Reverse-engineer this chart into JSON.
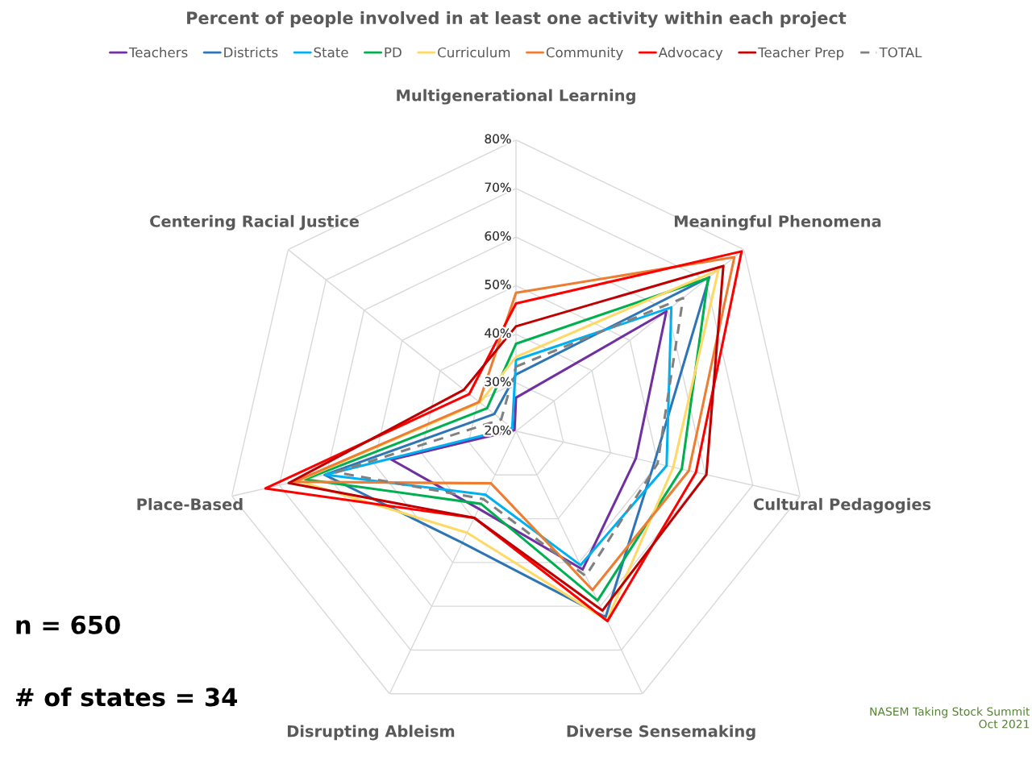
{
  "chart_data": {
    "type": "radar",
    "title": "Percent of people involved in at least one activity within each project",
    "categories": [
      "Multigenerational Learning",
      "Meaningful Phenomena",
      "Cultural Pedagogies",
      "Diverse Sensemaking",
      "Disrupting Ableism",
      "Place-Based",
      "Centering Racial Justice"
    ],
    "series": [
      {
        "name": "Teachers",
        "color": "#7030a0",
        "values": [
          26.9,
          59.6,
          45.3,
          51.6,
          37.7,
          46.3,
          20.4
        ]
      },
      {
        "name": "Districts",
        "color": "#2e75b6",
        "values": [
          31.7,
          70.9,
          49.2,
          62.5,
          45.5,
          60.4,
          25.7
        ]
      },
      {
        "name": "State",
        "color": "#00b0f0",
        "values": [
          34.7,
          60.9,
          51.8,
          50.6,
          34.5,
          60.2,
          21
        ]
      },
      {
        "name": "PD",
        "color": "#00b050",
        "values": [
          38,
          70.6,
          55,
          58.7,
          36.6,
          64.5,
          27.6
        ]
      },
      {
        "name": "Curriculum",
        "color": "#ffd966",
        "values": [
          35.3,
          73.3,
          53.2,
          63.2,
          43.2,
          66,
          29.5
        ]
      },
      {
        "name": "Community",
        "color": "#ed7d31",
        "values": [
          48.5,
          77.5,
          56.5,
          56.3,
          31.9,
          66.8,
          29.7
        ]
      },
      {
        "name": "Advocacy",
        "color": "#ff0000",
        "values": [
          46.3,
          79.4,
          58,
          63.4,
          39.8,
          72.9,
          32.3
        ]
      },
      {
        "name": "Teacher Prep",
        "color": "#c00000",
        "values": [
          41.6,
          74.6,
          60.2,
          61,
          39.8,
          68,
          33.7
        ]
      },
      {
        "name": "TOTAL",
        "color": "#808080",
        "line_style": "dashed",
        "values": [
          33.3,
          64,
          49.9,
          53.1,
          35.5,
          58,
          23.9
        ]
      }
    ],
    "ylim": [
      20,
      80
    ],
    "yticks": [
      {
        "value": 20,
        "label": "20%"
      },
      {
        "value": 30,
        "label": "30%"
      },
      {
        "value": 40,
        "label": "40%"
      },
      {
        "value": 50,
        "label": "50%"
      },
      {
        "value": 60,
        "label": "60%"
      },
      {
        "value": 70,
        "label": "70%"
      },
      {
        "value": 80,
        "label": "80%"
      }
    ],
    "grid": true,
    "legend": "top",
    "line_style": "solid",
    "annotations": [
      "n = 650",
      "# of states = 34",
      "NASEM Taking Stock Summit\nOct 2021"
    ]
  }
}
